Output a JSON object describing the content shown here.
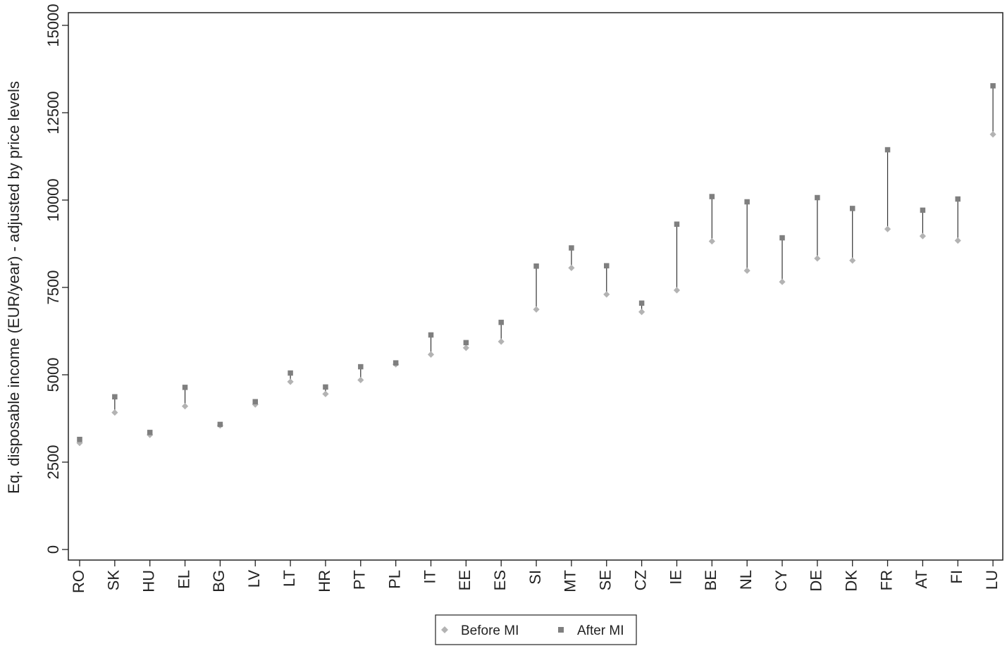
{
  "chart_data": {
    "type": "scatter",
    "ylabel": "Eq. disposable income (EUR/year) - adjusted by price levels",
    "xlabel": "",
    "ylim": [
      0,
      15000
    ],
    "yticks": [
      0,
      2500,
      5000,
      7500,
      10000,
      12500,
      15000
    ],
    "grid": false,
    "legend_position": "bottom-center",
    "categories": [
      "RO",
      "SK",
      "HU",
      "EL",
      "BG",
      "LV",
      "LT",
      "HR",
      "PT",
      "PL",
      "IT",
      "EE",
      "ES",
      "SI",
      "MT",
      "SE",
      "CZ",
      "IE",
      "BE",
      "NL",
      "CY",
      "DE",
      "DK",
      "FR",
      "AT",
      "FI",
      "LU"
    ],
    "series": [
      {
        "name": "Before MI",
        "marker": "diamond",
        "color": "#b3b3b3",
        "values": [
          3050,
          3920,
          3280,
          4100,
          3550,
          4150,
          4800,
          4450,
          4850,
          5300,
          5580,
          5770,
          5950,
          6870,
          8060,
          7300,
          6800,
          7420,
          8820,
          7980,
          7660,
          8330,
          8270,
          9170,
          8970,
          8840,
          11880
        ]
      },
      {
        "name": "After MI",
        "marker": "square",
        "color": "#7f7f7f",
        "values": [
          3150,
          4370,
          3350,
          4640,
          3580,
          4230,
          5050,
          4650,
          5230,
          5340,
          6140,
          5920,
          6500,
          8110,
          8630,
          8120,
          7050,
          9310,
          10100,
          9950,
          8920,
          10070,
          9760,
          11440,
          9710,
          10030,
          13270
        ]
      }
    ],
    "connector_color": "#333333"
  }
}
